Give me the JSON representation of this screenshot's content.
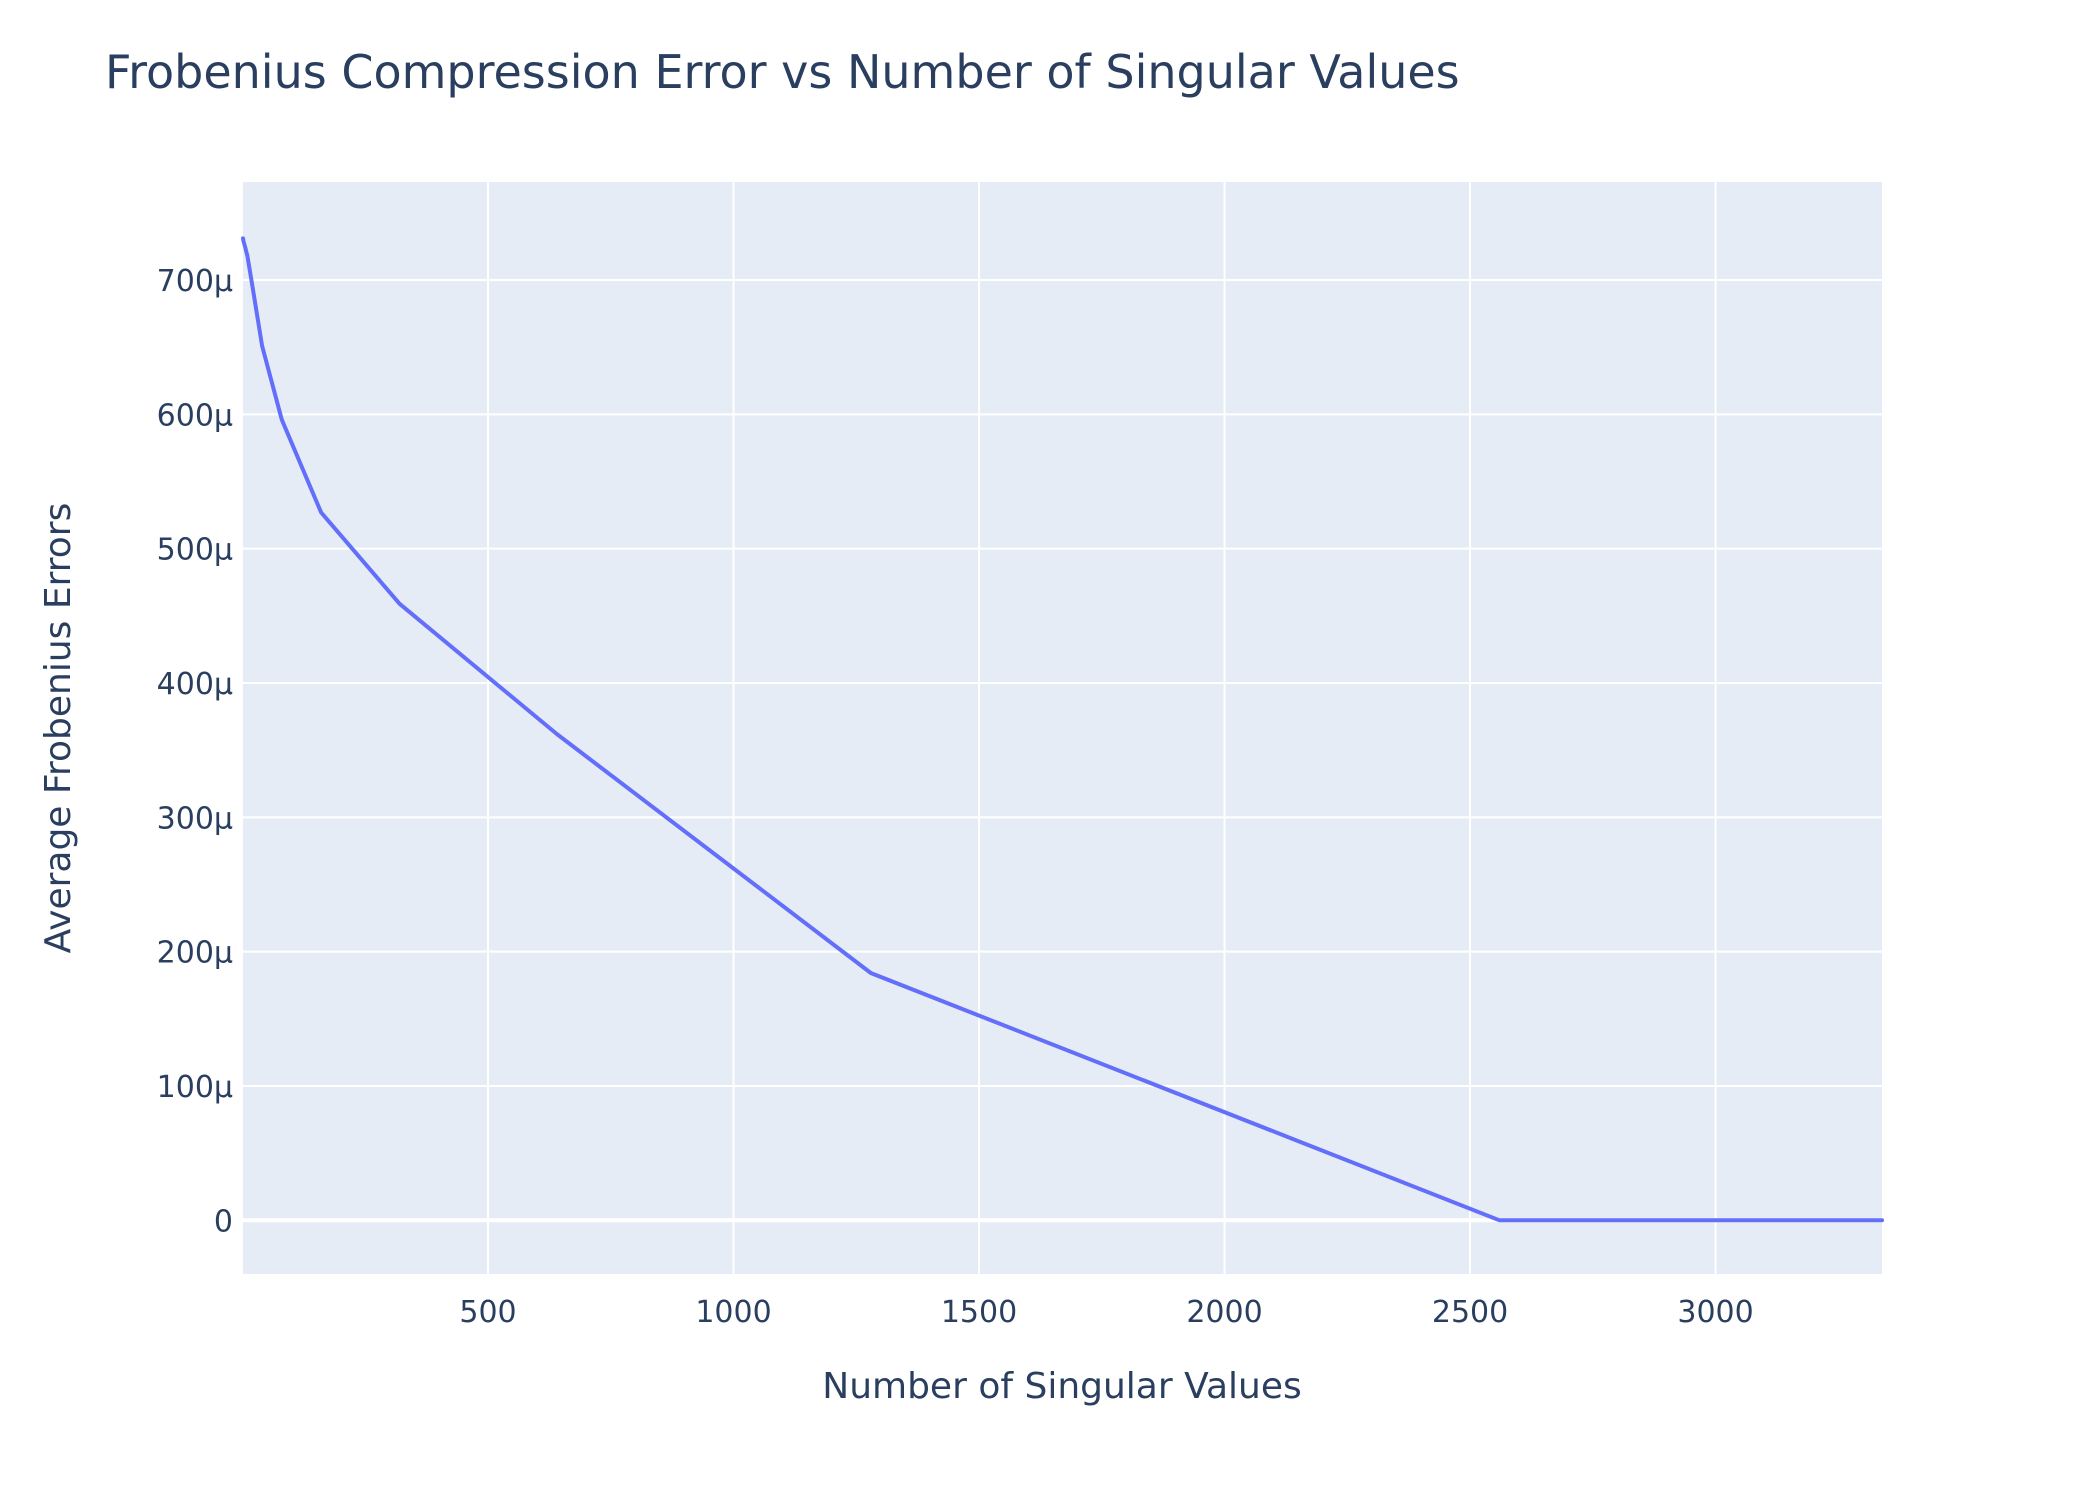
{
  "chart_data": {
    "type": "line",
    "title": "Frobenius Compression Error vs Number of Singular Values",
    "xlabel": "Number of Singular Values",
    "ylabel": "Average Frobenius Errors",
    "xlim": [
      1,
      3339
    ],
    "ylim": [
      -4e-05,
      0.000773
    ],
    "x_ticks": [
      {
        "value": 500,
        "label": "500"
      },
      {
        "value": 1000,
        "label": "1000"
      },
      {
        "value": 1500,
        "label": "1500"
      },
      {
        "value": 2000,
        "label": "2000"
      },
      {
        "value": 2500,
        "label": "2500"
      },
      {
        "value": 3000,
        "label": "3000"
      }
    ],
    "y_ticks": [
      {
        "value": 0,
        "label": "0"
      },
      {
        "value": 0.0001,
        "label": "100μ"
      },
      {
        "value": 0.0002,
        "label": "200μ"
      },
      {
        "value": 0.0003,
        "label": "300μ"
      },
      {
        "value": 0.0004,
        "label": "400μ"
      },
      {
        "value": 0.0005,
        "label": "500μ"
      },
      {
        "value": 0.0006,
        "label": "600μ"
      },
      {
        "value": 0.0007,
        "label": "700μ"
      }
    ],
    "grid": true,
    "colors": {
      "plot_bg": "#e5ecf6",
      "grid": "#ffffff",
      "line": "#636efa",
      "text": "#2a3f5f"
    },
    "series": [
      {
        "x": [
          1,
          2,
          5,
          10,
          20,
          40,
          80,
          160,
          320,
          640,
          1280,
          2560,
          3339
        ],
        "y": [
          0.000731,
          0.000729,
          0.000725,
          0.000718,
          0.000696,
          0.000651,
          0.000596,
          0.000527,
          0.000459,
          0.000362,
          0.000184,
          0.0,
          0.0
        ]
      }
    ]
  }
}
